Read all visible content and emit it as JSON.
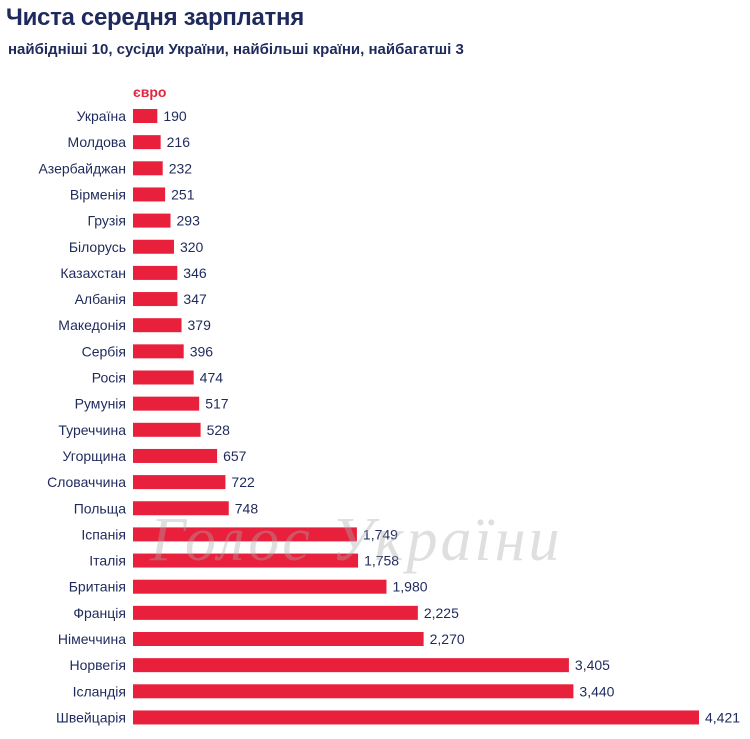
{
  "header": {
    "title": "Чиста середня зарплатня",
    "subtitle": "найбідніші 10, сусіди України, найбільші країни, найбагатші 3",
    "unit": "євро"
  },
  "watermark": "Голос України",
  "colors": {
    "bar": "#e8203c",
    "text": "#1f2a5c",
    "accent": "#e32440"
  },
  "chart_data": {
    "type": "bar",
    "orientation": "horizontal",
    "title": "Чиста середня зарплатня",
    "subtitle": "найбідніші 10, сусіди України, найбільші країни, найбагатші 3",
    "unit": "євро",
    "categories": [
      "Україна",
      "Молдова",
      "Азербайджан",
      "Вірменія",
      "Грузія",
      "Білорусь",
      "Казахстан",
      "Албанія",
      "Македонія",
      "Сербія",
      "Росія",
      "Румунія",
      "Туреччина",
      "Угорщина",
      "Словаччина",
      "Польща",
      "Іспанія",
      "Італія",
      "Британія",
      "Франція",
      "Німеччина",
      "Норвегія",
      "Ісландія",
      "Швейцарія"
    ],
    "values": [
      190,
      216,
      232,
      251,
      293,
      320,
      346,
      347,
      379,
      396,
      474,
      517,
      528,
      657,
      722,
      748,
      1749,
      1758,
      1980,
      2225,
      2270,
      3405,
      3440,
      4421
    ],
    "value_labels": [
      "190",
      "216",
      "232",
      "251",
      "293",
      "320",
      "346",
      "347",
      "379",
      "396",
      "474",
      "517",
      "528",
      "657",
      "722",
      "748",
      "1,749",
      "1,758",
      "1,980",
      "2,225",
      "2,270",
      "3,405",
      "3,440",
      "4,421"
    ],
    "xlim": [
      0,
      4421
    ],
    "grid": false,
    "legend": "none"
  }
}
